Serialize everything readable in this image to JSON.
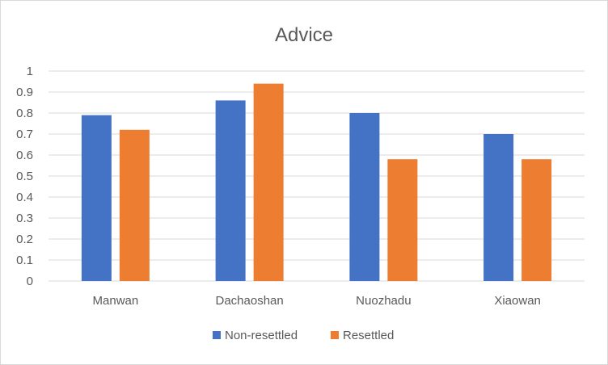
{
  "chart_data": {
    "type": "bar",
    "title": "Advice",
    "categories": [
      "Manwan",
      "Dachaoshan",
      "Nuozhadu",
      "Xiaowan"
    ],
    "series": [
      {
        "name": "Non-resettled",
        "color": "#4472c4",
        "values": [
          0.79,
          0.86,
          0.8,
          0.7
        ]
      },
      {
        "name": "Resettled",
        "color": "#ed7d31",
        "values": [
          0.72,
          0.94,
          0.58,
          0.58
        ]
      }
    ],
    "xlabel": "",
    "ylabel": "",
    "ylim": [
      0,
      1
    ],
    "yticks": [
      "0",
      "0.1",
      "0.2",
      "0.3",
      "0.4",
      "0.5",
      "0.6",
      "0.7",
      "0.8",
      "0.9",
      "1"
    ],
    "grid": true,
    "legend_position": "bottom"
  }
}
